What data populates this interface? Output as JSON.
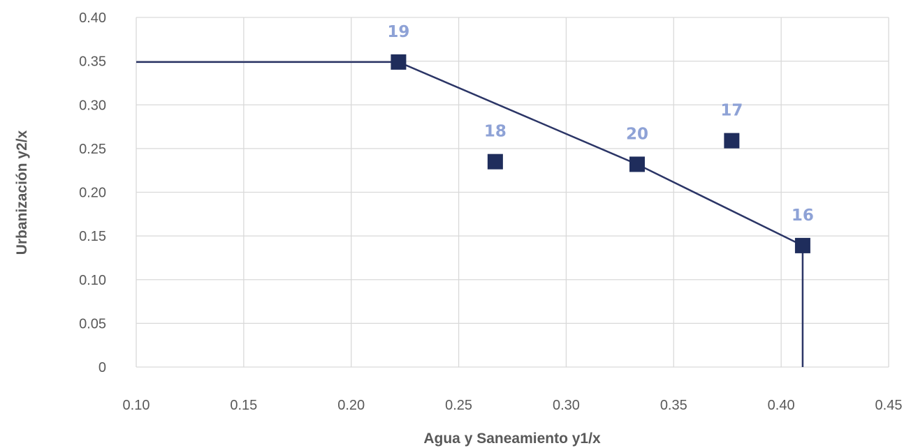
{
  "chart_data": {
    "type": "scatter",
    "xlabel": "Agua y Saneamiento  y1/x",
    "ylabel": "Urbanización  y2/x",
    "xlim": [
      0.1,
      0.45
    ],
    "ylim": [
      0,
      0.4
    ],
    "x_ticks": [
      "0.10",
      "0.15",
      "0.20",
      "0.25",
      "0.30",
      "0.35",
      "0.40",
      "0.45"
    ],
    "y_ticks": [
      "0",
      "0.05",
      "0.10",
      "0.15",
      "0.20",
      "0.25",
      "0.30",
      "0.35",
      "0.40"
    ],
    "grid": true,
    "legend": "none",
    "points": [
      {
        "label": "19",
        "x": 0.222,
        "y": 0.349
      },
      {
        "label": "18",
        "x": 0.267,
        "y": 0.235
      },
      {
        "label": "20",
        "x": 0.333,
        "y": 0.232
      },
      {
        "label": "17",
        "x": 0.377,
        "y": 0.259
      },
      {
        "label": "16",
        "x": 0.41,
        "y": 0.139
      }
    ],
    "frontier": [
      {
        "x": 0.1,
        "y": 0.349
      },
      {
        "x": 0.222,
        "y": 0.349
      },
      {
        "x": 0.333,
        "y": 0.232
      },
      {
        "x": 0.41,
        "y": 0.139
      },
      {
        "x": 0.41,
        "y": 0
      }
    ],
    "colors": {
      "marker": "#1f2d5c",
      "line": "#2b3566",
      "label": "#8ea2d6",
      "grid": "#d9d9d9",
      "tick_text": "#595959"
    }
  }
}
